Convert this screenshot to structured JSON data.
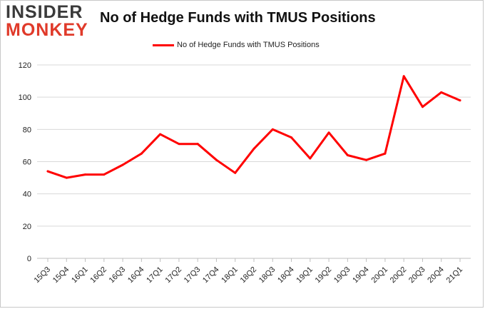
{
  "logo": {
    "line1": "INSIDER",
    "line2": "MONKEY"
  },
  "chart_data": {
    "type": "line",
    "title": "No of Hedge Funds with TMUS Positions",
    "xlabel": "",
    "ylabel": "",
    "categories": [
      "15Q3",
      "15Q4",
      "16Q1",
      "16Q2",
      "16Q3",
      "16Q4",
      "17Q1",
      "17Q2",
      "17Q3",
      "17Q4",
      "18Q1",
      "18Q2",
      "18Q3",
      "18Q4",
      "19Q1",
      "19Q2",
      "19Q3",
      "19Q4",
      "20Q1",
      "20Q2",
      "20Q3",
      "20Q4",
      "21Q1"
    ],
    "series": [
      {
        "name": "No of Hedge Funds with TMUS  Positions",
        "color": "#ff0000",
        "values": [
          54,
          50,
          52,
          52,
          58,
          65,
          77,
          71,
          71,
          61,
          53,
          68,
          80,
          75,
          62,
          78,
          64,
          61,
          65,
          113,
          94,
          103,
          98
        ]
      }
    ],
    "ylim": [
      0,
      120
    ],
    "yticks": [
      "0",
      "20",
      "40",
      "60",
      "80",
      "100",
      "120"
    ],
    "grid": true,
    "legend": "top-center"
  }
}
